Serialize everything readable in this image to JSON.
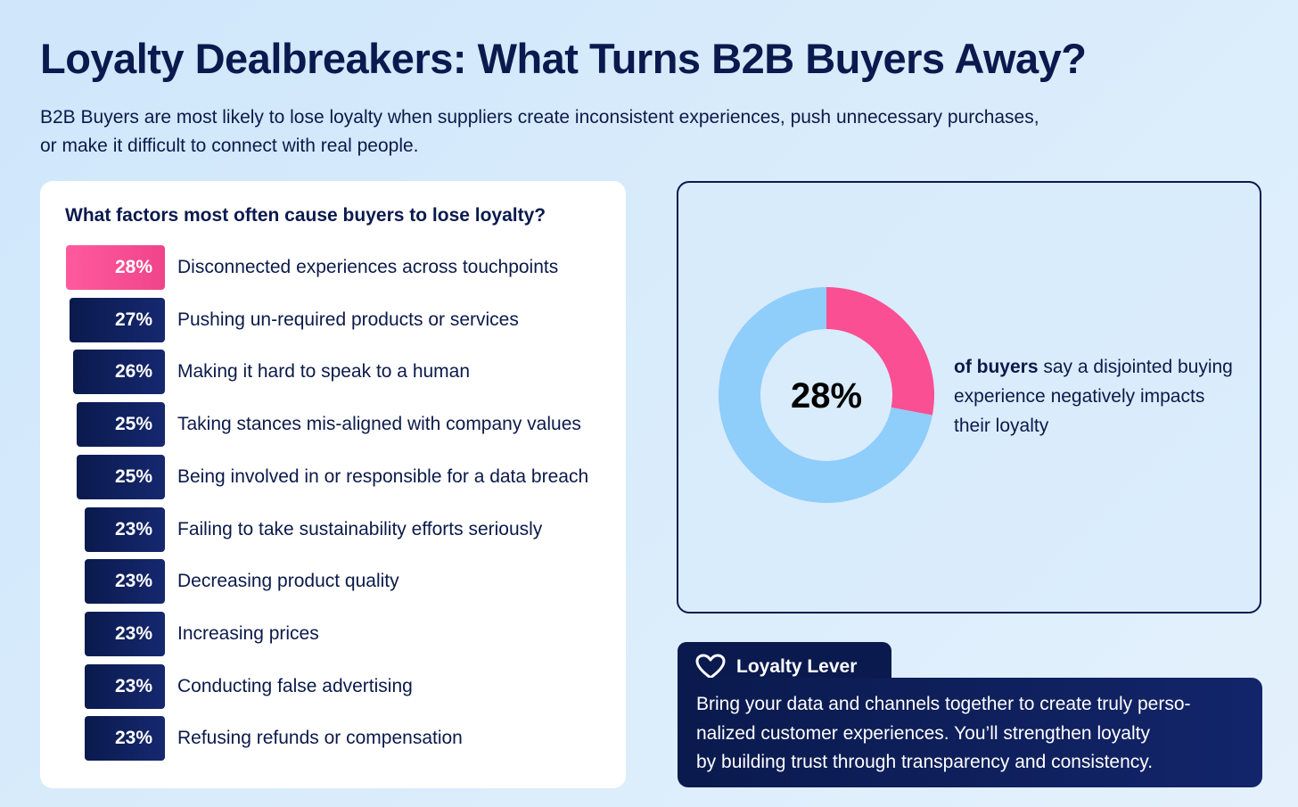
{
  "title": "Loyalty Dealbreakers: What Turns B2B Buyers Away?",
  "subtitle": "B2B Buyers are most likely to lose loyalty when suppliers create inconsistent experiences, push unnecessary purchases, or make it difficult to connect with real people.",
  "chart_data": [
    {
      "type": "bar",
      "orientation": "horizontal",
      "title": "What factors most often cause buyers to lose loyalty?",
      "highlight_color": "#f0448a",
      "bar_color": "#0a1a4e",
      "categories": [
        "Disconnected experiences across touchpoints",
        "Pushing un-required products or services",
        "Making it hard to speak to a human",
        "Taking stances mis-aligned with company values",
        "Being involved in or responsible for a data breach",
        "Failing to take sustainability efforts seriously",
        "Decreasing product quality",
        "Increasing prices",
        "Conducting false advertising",
        "Refusing refunds or compensation"
      ],
      "values": [
        28,
        27,
        26,
        25,
        25,
        23,
        23,
        23,
        23,
        23
      ],
      "value_labels": [
        "28%",
        "27%",
        "26%",
        "25%",
        "25%",
        "23%",
        "23%",
        "23%",
        "23%",
        "23%"
      ],
      "highlight_index": 0
    },
    {
      "type": "pie",
      "variant": "donut",
      "center_label": "28%",
      "slices": [
        {
          "value": 28,
          "color": "#fb4f93"
        },
        {
          "value": 72,
          "color": "#8fcdfb"
        }
      ],
      "caption_bold": "of buyers",
      "caption_rest": " say a disjointed buying experience negatively impacts their loyalty"
    }
  ],
  "lever": {
    "icon": "heart-icon",
    "label": "Loyalty Lever",
    "text_lines": [
      "Bring your data and channels together to create truly perso-",
      "nalized customer experiences. You’ll strengthen loyalty",
      "by building trust through transparency and consistency."
    ]
  }
}
